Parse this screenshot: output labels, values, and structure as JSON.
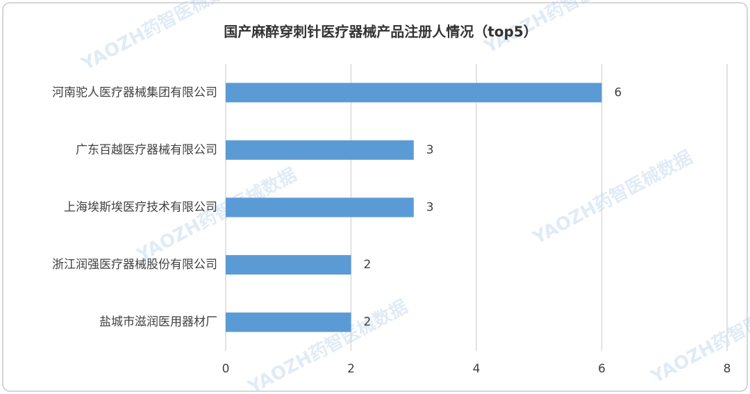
{
  "chart_data": {
    "type": "bar",
    "orientation": "horizontal",
    "title": "国产麻醉穿刺针医疗器械产品注册人情况（top5）",
    "watermark": "YAOZH药智医械数据",
    "categories": [
      "河南驼人医疗器械集团有限公司",
      "广东百越医疗器械有限公司",
      "上海埃斯埃医疗技术有限公司",
      "浙江润强医疗器械股份有限公司",
      "盐城市滋润医用器材厂"
    ],
    "values": [
      6,
      3,
      3,
      2,
      2
    ],
    "color": "#5b9bd5",
    "xlim": [
      0,
      8
    ],
    "xticks": [
      0,
      2,
      4,
      6,
      8
    ],
    "grid": true
  }
}
